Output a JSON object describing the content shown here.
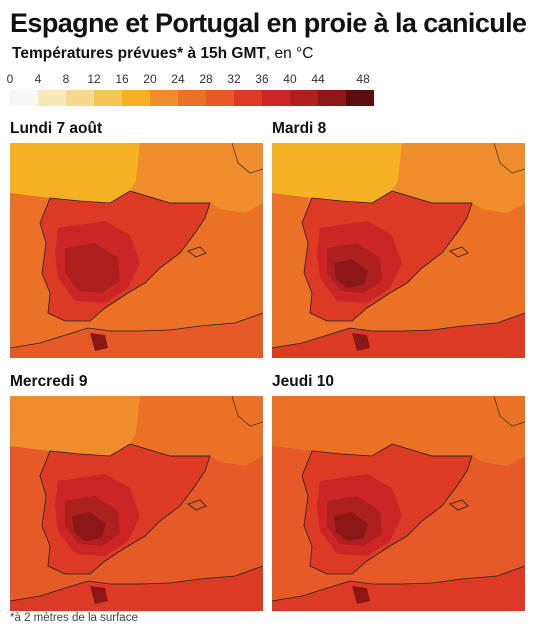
{
  "title": "Espagne et Portugal en proie à la canicule",
  "subtitle": {
    "main": "Températures prévues* à 15h GMT",
    "suffix": ", en °C"
  },
  "legend": {
    "ticks": [
      "0",
      "4",
      "8",
      "12",
      "16",
      "20",
      "24",
      "28",
      "32",
      "36",
      "40",
      "44",
      "48"
    ],
    "colors": [
      "#f7f7f7",
      "#f8e9b8",
      "#f6d98a",
      "#f5c654",
      "#f5b024",
      "#ef8c2c",
      "#ea7126",
      "#e55a27",
      "#dc3a25",
      "#cc2526",
      "#ae1f1f",
      "#8b1717",
      "#5c0e0e"
    ]
  },
  "panels": [
    {
      "label": "Lundi 7 août",
      "intensity": 0
    },
    {
      "label": "Mardi 8",
      "intensity": 1
    },
    {
      "label": "Mercredi 9",
      "intensity": 2
    },
    {
      "label": "Jeudi 10",
      "intensity": 3
    }
  ],
  "footnote": "*à 2 mètres de la surface"
}
